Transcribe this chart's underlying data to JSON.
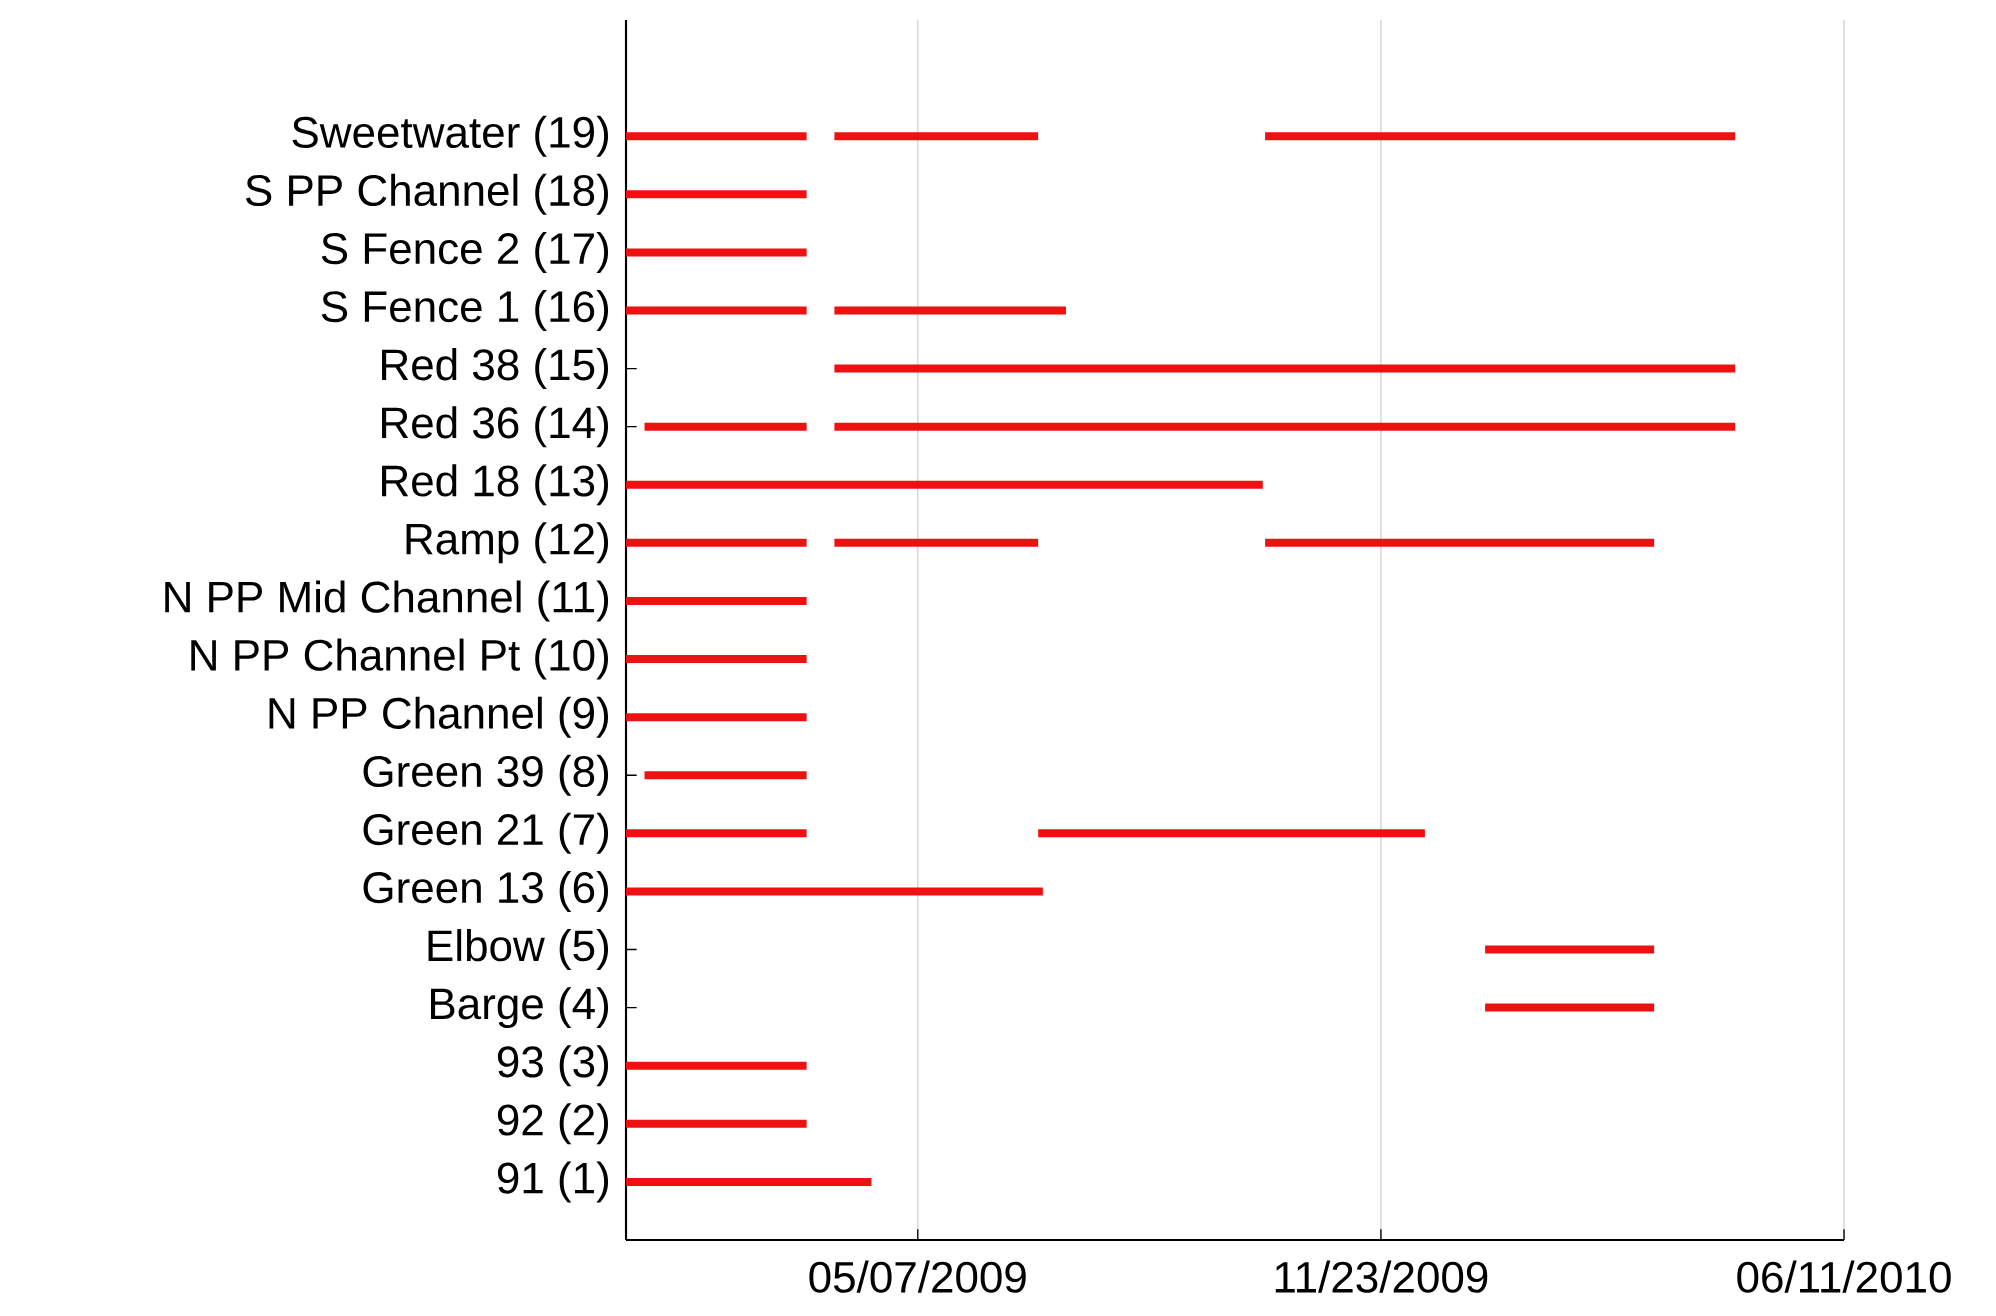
{
  "chart_data": {
    "type": "line",
    "grid": "x",
    "color": "#ee1111",
    "xlim": [
      "2009-01-01",
      "2010-06-11"
    ],
    "xticks": [
      {
        "value": "2009-05-07",
        "label": "05/07/2009"
      },
      {
        "value": "2009-11-23",
        "label": "11/23/2009"
      },
      {
        "value": "2010-06-11",
        "label": "06/11/2010"
      }
    ],
    "ylim": [
      0,
      21
    ],
    "yticks": [
      {
        "value": 19,
        "label": "Sweetwater (19)"
      },
      {
        "value": 18,
        "label": "S PP Channel (18)"
      },
      {
        "value": 17,
        "label": "S Fence 2 (17)"
      },
      {
        "value": 16,
        "label": "S Fence 1 (16)"
      },
      {
        "value": 15,
        "label": "Red 38 (15)"
      },
      {
        "value": 14,
        "label": "Red 36 (14)"
      },
      {
        "value": 13,
        "label": "Red 18 (13)"
      },
      {
        "value": 12,
        "label": "Ramp (12)"
      },
      {
        "value": 11,
        "label": "N PP Mid Channel (11)"
      },
      {
        "value": 10,
        "label": "N PP Channel Pt (10)"
      },
      {
        "value": 9,
        "label": "N PP Channel (9)"
      },
      {
        "value": 8,
        "label": "Green 39 (8)"
      },
      {
        "value": 7,
        "label": "Green 21 (7)"
      },
      {
        "value": 6,
        "label": "Green 13 (6)"
      },
      {
        "value": 5,
        "label": "Elbow (5)"
      },
      {
        "value": 4,
        "label": "Barge (4)"
      },
      {
        "value": 3,
        "label": "93 (3)"
      },
      {
        "value": 2,
        "label": "92 (2)"
      },
      {
        "value": 1,
        "label": "91 (1)"
      }
    ],
    "series": [
      {
        "x": [
          "2009-01-01",
          "2009-03-20"
        ],
        "values": [
          19,
          19
        ]
      },
      {
        "x": [
          "2009-04-01",
          "2009-06-28"
        ],
        "values": [
          19,
          19
        ]
      },
      {
        "x": [
          "2009-10-04",
          "2009-12-12",
          "2010-04-25"
        ],
        "values": [
          19,
          19,
          19
        ]
      },
      {
        "x": [
          "2009-01-01",
          "2009-03-20"
        ],
        "values": [
          18,
          18
        ]
      },
      {
        "x": [
          "2009-01-01",
          "2009-03-20"
        ],
        "values": [
          17,
          17
        ]
      },
      {
        "x": [
          "2009-01-01",
          "2009-03-20"
        ],
        "values": [
          16,
          16
        ]
      },
      {
        "x": [
          "2009-04-01",
          "2009-07-10"
        ],
        "values": [
          16,
          16
        ]
      },
      {
        "x": [
          "2009-04-01",
          "2009-12-12",
          "2010-04-25"
        ],
        "values": [
          15,
          15,
          15
        ]
      },
      {
        "x": [
          "2009-01-09",
          "2009-03-20"
        ],
        "values": [
          14,
          14
        ]
      },
      {
        "x": [
          "2009-04-01",
          "2009-12-12",
          "2010-04-25"
        ],
        "values": [
          14,
          14,
          14
        ]
      },
      {
        "x": [
          "2009-01-01",
          "2009-10-03"
        ],
        "values": [
          13,
          13
        ]
      },
      {
        "x": [
          "2009-01-01",
          "2009-03-20"
        ],
        "values": [
          12,
          12
        ]
      },
      {
        "x": [
          "2009-04-01",
          "2009-06-28"
        ],
        "values": [
          12,
          12
        ]
      },
      {
        "x": [
          "2009-10-04",
          "2010-03-21"
        ],
        "values": [
          12,
          12
        ]
      },
      {
        "x": [
          "2009-01-01",
          "2009-03-20"
        ],
        "values": [
          11,
          11
        ]
      },
      {
        "x": [
          "2009-01-01",
          "2009-03-20"
        ],
        "values": [
          10,
          10
        ]
      },
      {
        "x": [
          "2009-01-01",
          "2009-03-20"
        ],
        "values": [
          9,
          9
        ]
      },
      {
        "x": [
          "2009-01-09",
          "2009-03-20"
        ],
        "values": [
          8,
          8
        ]
      },
      {
        "x": [
          "2009-01-01",
          "2009-03-20"
        ],
        "values": [
          7,
          7
        ]
      },
      {
        "x": [
          "2009-06-28",
          "2009-12-12"
        ],
        "values": [
          7,
          7
        ]
      },
      {
        "x": [
          "2009-01-01",
          "2009-06-30"
        ],
        "values": [
          6,
          6
        ]
      },
      {
        "x": [
          "2010-01-07",
          "2010-03-21"
        ],
        "values": [
          5,
          5
        ]
      },
      {
        "x": [
          "2010-01-07",
          "2010-03-21"
        ],
        "values": [
          4,
          4
        ]
      },
      {
        "x": [
          "2009-01-01",
          "2009-03-20"
        ],
        "values": [
          3,
          3
        ]
      },
      {
        "x": [
          "2009-01-01",
          "2009-03-20"
        ],
        "values": [
          2,
          2
        ]
      },
      {
        "x": [
          "2009-01-01",
          "2009-04-17"
        ],
        "values": [
          1,
          1
        ]
      }
    ]
  }
}
